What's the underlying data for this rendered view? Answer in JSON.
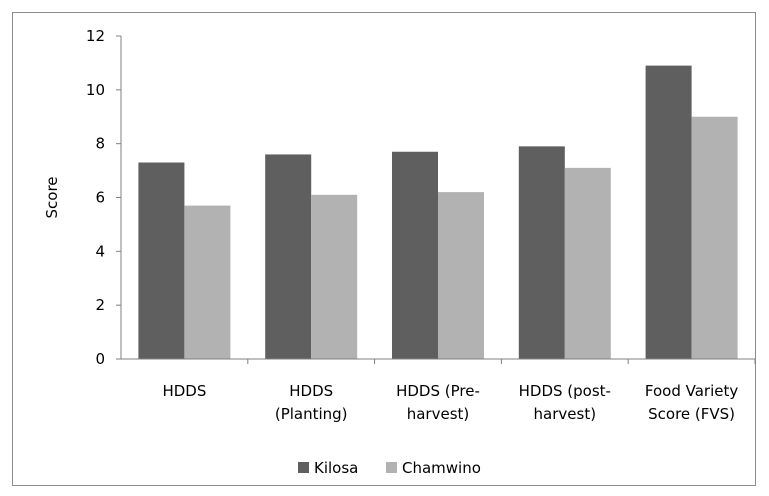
{
  "chart_data": {
    "type": "bar",
    "categories": [
      [
        "HDDS"
      ],
      [
        "HDDS",
        "(Planting)"
      ],
      [
        "HDDS (Pre-",
        "harvest)"
      ],
      [
        "HDDS (post-",
        "harvest)"
      ],
      [
        "Food Variety",
        "Score (FVS)"
      ]
    ],
    "series": [
      {
        "name": "Kilosa",
        "color": "#5f5f5f",
        "values": [
          7.3,
          7.6,
          7.7,
          7.9,
          10.9
        ]
      },
      {
        "name": "Chamwino",
        "color": "#b2b2b2",
        "values": [
          5.7,
          6.1,
          6.2,
          7.1,
          9.0
        ]
      }
    ],
    "ylabel": "Score",
    "ylim": [
      0,
      12
    ],
    "yticks": [
      "0",
      "2",
      "4",
      "6",
      "8",
      "10",
      "12"
    ],
    "grid": false,
    "legend_position": "bottom"
  }
}
